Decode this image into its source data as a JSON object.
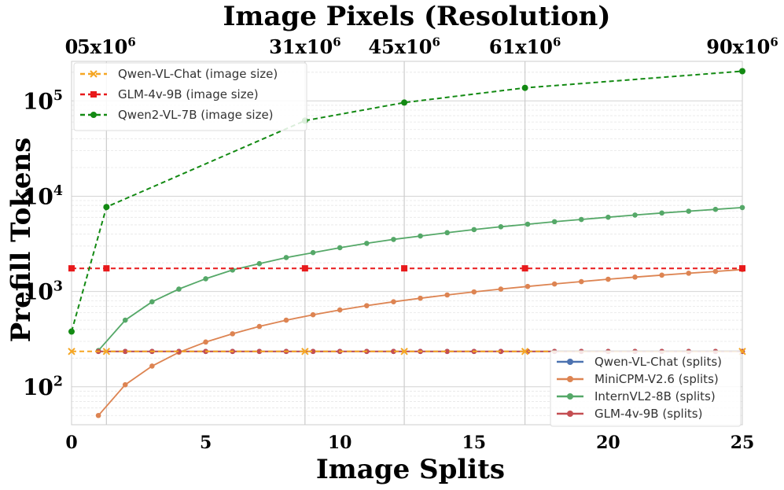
{
  "chart_data": {
    "type": "line",
    "title": "Image Pixels (Resolution)",
    "xlabel": "Image Splits",
    "ylabel": "Prefill Tokens",
    "xlim": [
      0,
      25
    ],
    "ylim": [
      40,
      260000
    ],
    "y_scale": "log",
    "x_ticks": [
      "0",
      "5",
      "10",
      "15",
      "20",
      "25"
    ],
    "y_ticks": [
      {
        "value": 100,
        "base": "10",
        "exp": "2"
      },
      {
        "value": 1000,
        "base": "10",
        "exp": "3"
      },
      {
        "value": 10000,
        "base": "10",
        "exp": "4"
      },
      {
        "value": 100000,
        "base": "10",
        "exp": "5"
      }
    ],
    "top_axis": {
      "ticks": [
        {
          "split": 0,
          "base": "0",
          "exp": ""
        },
        {
          "split": 1.3,
          "base": "5x10",
          "exp": "6"
        },
        {
          "split": 8.7,
          "base": "31x10",
          "exp": "6"
        },
        {
          "split": 12.4,
          "base": "45x10",
          "exp": "6"
        },
        {
          "split": 16.9,
          "base": "61x10",
          "exp": "6"
        },
        {
          "split": 25,
          "base": "90x10",
          "exp": "6"
        }
      ]
    },
    "grid": true,
    "legend_size": {
      "placement": "top-left",
      "entries": [
        {
          "series": "Qwen-VL-Chat (image size)",
          "label": "Qwen-VL-Chat (image size)"
        },
        {
          "series": "GLM-4v-9B (image size)",
          "label": "GLM-4v-9B (image size)"
        },
        {
          "series": "Qwen2-VL-7B (image size)",
          "label": "Qwen2-VL-7B (image size)"
        }
      ]
    },
    "legend_splits": {
      "placement": "bottom-right",
      "entries": [
        {
          "series": "Qwen-VL-Chat (splits)",
          "label": "Qwen-VL-Chat (splits)"
        },
        {
          "series": "MiniCPM-V2.6 (splits)",
          "label": "MiniCPM-V2.6 (splits)"
        },
        {
          "series": "InternVL2-8B (splits)",
          "label": "InternVL2-8B (splits)"
        },
        {
          "series": "GLM-4v-9B (splits)",
          "label": "GLM-4v-9B (splits)"
        }
      ]
    },
    "series": [
      {
        "name": "Qwen-VL-Chat (splits)",
        "color": "#4c72b0",
        "dash": false,
        "marker": "circle",
        "x": [
          1,
          2,
          3,
          4,
          5,
          6,
          7,
          8,
          9,
          10,
          11,
          12,
          13,
          14,
          15,
          16,
          17,
          18,
          19,
          20,
          21,
          22,
          23,
          24,
          25
        ],
        "y": [
          235,
          235,
          235,
          235,
          235,
          235,
          235,
          235,
          235,
          235,
          235,
          235,
          235,
          235,
          235,
          235,
          235,
          235,
          235,
          235,
          235,
          235,
          235,
          235,
          235
        ]
      },
      {
        "name": "MiniCPM-V2.6 (splits)",
        "color": "#dd8452",
        "dash": false,
        "marker": "circle",
        "x": [
          1,
          2,
          3,
          4,
          5,
          6,
          7,
          8,
          9,
          10,
          11,
          12,
          13,
          14,
          15,
          16,
          17,
          18,
          19,
          20,
          21,
          22,
          23,
          24,
          25
        ],
        "y": [
          50,
          105,
          165,
          230,
          295,
          360,
          430,
          500,
          570,
          640,
          710,
          780,
          850,
          920,
          990,
          1060,
          1130,
          1200,
          1270,
          1345,
          1415,
          1485,
          1555,
          1625,
          1700
        ]
      },
      {
        "name": "InternVL2-8B (splits)",
        "color": "#55a868",
        "dash": false,
        "marker": "circle",
        "x": [
          1,
          2,
          3,
          4,
          5,
          6,
          7,
          8,
          9,
          10,
          11,
          12,
          13,
          14,
          15,
          16,
          17,
          18,
          19,
          20,
          21,
          22,
          23,
          24,
          25
        ],
        "y": [
          240,
          500,
          780,
          1060,
          1360,
          1680,
          1960,
          2270,
          2560,
          2880,
          3200,
          3520,
          3820,
          4140,
          4460,
          4780,
          5080,
          5400,
          5700,
          6020,
          6340,
          6660,
          6960,
          7280,
          7600
        ]
      },
      {
        "name": "GLM-4v-9B (splits)",
        "color": "#c44e52",
        "dash": false,
        "marker": "circle",
        "x": [
          1,
          2,
          3,
          4,
          5,
          6,
          7,
          8,
          9,
          10,
          11,
          12,
          13,
          14,
          15,
          16,
          17,
          18,
          19,
          20,
          21,
          22,
          23,
          24,
          25
        ],
        "y": [
          235,
          235,
          235,
          235,
          235,
          235,
          235,
          235,
          235,
          235,
          235,
          235,
          235,
          235,
          235,
          235,
          235,
          235,
          235,
          235,
          235,
          235,
          235,
          235,
          235
        ]
      },
      {
        "name": "Qwen-VL-Chat (image size)",
        "color": "#f5a623",
        "dash": true,
        "marker": "x",
        "x": [
          0,
          1.3,
          8.7,
          12.4,
          16.9,
          25
        ],
        "y": [
          235,
          235,
          235,
          235,
          235,
          235
        ]
      },
      {
        "name": "GLM-4v-9B (image size)",
        "color": "#e8191b",
        "dash": true,
        "marker": "square",
        "x": [
          0,
          1.3,
          8.7,
          12.4,
          16.9,
          25
        ],
        "y": [
          1750,
          1750,
          1750,
          1750,
          1750,
          1750
        ]
      },
      {
        "name": "Qwen2-VL-7B (image size)",
        "color": "#138a13",
        "dash": true,
        "marker": "circle",
        "x": [
          0,
          1.3,
          8.7,
          12.4,
          16.9,
          25
        ],
        "y": [
          380,
          7700,
          62000,
          96000,
          137000,
          205000
        ]
      }
    ]
  }
}
